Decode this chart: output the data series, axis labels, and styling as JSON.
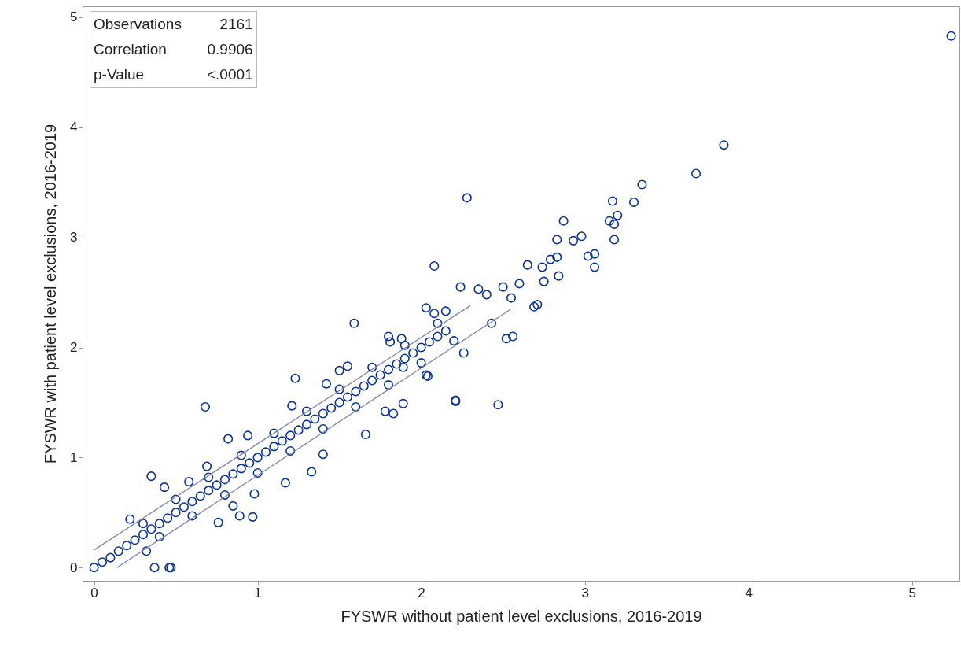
{
  "chart_data": {
    "type": "scatter",
    "xlabel": "FYSWR without patient level exclusions, 2016-2019",
    "ylabel": "FYSWR with patient level exclusions, 2016-2019",
    "annotations": [
      "Observations",
      "2161",
      "Correlation",
      "0.9906",
      "p-Value",
      "<.0001"
    ],
    "xlim": [
      -0.07,
      5.29
    ],
    "ylim": [
      -0.12,
      5.1
    ],
    "xticks": [
      0,
      1,
      2,
      3,
      4,
      5
    ],
    "yticks": [
      0,
      1,
      2,
      3,
      4,
      5
    ],
    "marker": "circle",
    "series": [
      {
        "color": "#0a3393",
        "x": [
          5.24,
          3.85,
          3.68,
          3.35,
          2.28,
          2.87,
          3.17,
          3.3,
          3.15,
          3.18,
          3.2,
          2.98,
          2.93,
          3.02,
          3.06,
          3.06,
          3.18,
          2.83,
          2.08,
          2.24,
          2.35,
          2.74,
          2.79,
          2.83,
          2.75,
          2.84,
          2.71,
          2.69,
          2.56,
          2.52,
          2.43,
          2.26,
          2.21,
          2.47,
          1.59,
          2.03,
          2.04,
          1.89,
          1.81,
          1.23,
          0.68,
          0.82,
          0.35,
          0.43,
          0.22,
          0.37,
          0.46,
          0.47,
          0,
          0.32,
          0.76,
          0.89,
          0.97,
          1.33,
          1.17,
          1.66,
          1.89,
          1.78,
          1.83,
          2.21,
          2.03,
          1.4,
          0.98,
          0.85,
          1.8,
          1.88,
          1.5,
          1.55,
          1.42,
          1.21,
          0.94,
          0.69,
          0.58,
          2.08,
          2.15,
          2.55,
          2.6,
          2.65,
          2.4,
          2.5,
          0.05,
          0.1,
          0.15,
          0.2,
          0.25,
          0.3,
          0.35,
          0.4,
          0.45,
          0.5,
          0.55,
          0.6,
          0.65,
          0.7,
          0.75,
          0.8,
          0.85,
          0.9,
          0.95,
          1.0,
          1.05,
          1.1,
          1.15,
          1.2,
          1.25,
          1.3,
          1.35,
          1.4,
          1.45,
          1.5,
          1.55,
          1.6,
          1.65,
          1.7,
          1.75,
          1.8,
          1.85,
          1.9,
          1.95,
          2.0,
          2.05,
          2.1,
          2.15,
          0.3,
          0.5,
          0.7,
          0.9,
          1.1,
          1.3,
          1.5,
          1.7,
          1.9,
          2.1,
          0.4,
          0.6,
          0.8,
          1.0,
          1.2,
          1.4,
          1.6,
          1.8,
          2.0,
          2.2
        ],
        "values": [
          4.83,
          3.84,
          3.58,
          3.48,
          3.36,
          3.15,
          3.33,
          3.32,
          3.15,
          3.12,
          3.2,
          3.01,
          2.97,
          2.83,
          2.85,
          2.73,
          2.98,
          2.98,
          2.74,
          2.55,
          2.53,
          2.73,
          2.8,
          2.82,
          2.6,
          2.65,
          2.39,
          2.37,
          2.1,
          2.08,
          2.22,
          1.95,
          1.51,
          1.48,
          2.22,
          2.36,
          1.74,
          1.82,
          2.05,
          1.72,
          1.46,
          1.17,
          0.83,
          0.73,
          0.44,
          0,
          0,
          0,
          0,
          0.15,
          0.41,
          0.47,
          0.46,
          0.87,
          0.77,
          1.21,
          1.49,
          1.42,
          1.4,
          1.52,
          1.75,
          1.03,
          0.67,
          0.56,
          2.1,
          2.08,
          1.79,
          1.83,
          1.67,
          1.47,
          1.2,
          0.92,
          0.78,
          2.31,
          2.33,
          2.45,
          2.58,
          2.75,
          2.48,
          2.55,
          0.05,
          0.09,
          0.15,
          0.2,
          0.25,
          0.3,
          0.35,
          0.4,
          0.45,
          0.5,
          0.55,
          0.6,
          0.65,
          0.7,
          0.75,
          0.8,
          0.85,
          0.9,
          0.95,
          1.0,
          1.05,
          1.1,
          1.15,
          1.2,
          1.25,
          1.3,
          1.35,
          1.4,
          1.45,
          1.5,
          1.55,
          1.6,
          1.65,
          1.7,
          1.75,
          1.8,
          1.85,
          1.9,
          1.95,
          2.0,
          2.05,
          2.1,
          2.15,
          0.4,
          0.62,
          0.82,
          1.02,
          1.22,
          1.42,
          1.62,
          1.82,
          2.02,
          2.22,
          0.28,
          0.47,
          0.66,
          0.86,
          1.06,
          1.26,
          1.46,
          1.66,
          1.86,
          2.06
        ]
      },
      {
        "type": "line",
        "marker": "none",
        "color": "#7d84b2",
        "x": [
          0,
          2.3
        ],
        "values": [
          0.16,
          2.38
        ]
      },
      {
        "type": "line",
        "marker": "none",
        "color": "#7d84b2",
        "x": [
          0.14,
          2.55
        ],
        "values": [
          0,
          2.35
        ]
      }
    ]
  }
}
